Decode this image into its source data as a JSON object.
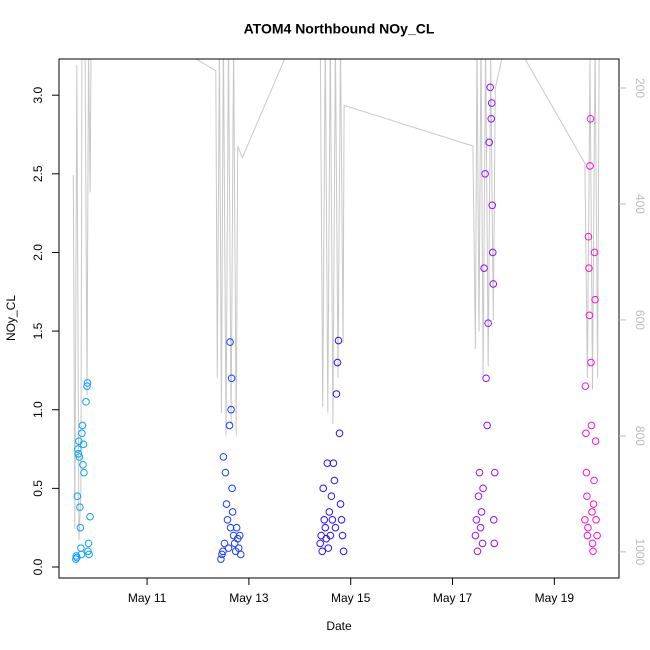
{
  "chart_data": {
    "type": "scatter",
    "title": "ATOM4 Northbound NOy_CL",
    "x_label": "Date",
    "y_label": "NOy_CL",
    "xlim": [
      9.27,
      20.27
    ],
    "xticks": [
      {
        "value": 11,
        "label": "May 11"
      },
      {
        "value": 13,
        "label": "May 13"
      },
      {
        "value": 15,
        "label": "May 15"
      },
      {
        "value": 17,
        "label": "May 17"
      },
      {
        "value": 19,
        "label": "May 19"
      }
    ],
    "ylim": [
      -0.07,
      3.23
    ],
    "yticks": [
      {
        "value": 0,
        "label": "0.0"
      },
      0.5,
      {
        "value": 1,
        "label": "1.0"
      },
      1.5,
      {
        "value": 2,
        "label": "2.0"
      },
      2.5,
      {
        "value": 3,
        "label": "3.0"
      }
    ],
    "y2lim": [
      1045,
      150
    ],
    "y2ticks": [
      200,
      400,
      600,
      800,
      1000
    ],
    "y2_color": "#bbbbbb",
    "series": [
      {
        "color": "#0aa0ff",
        "x": [
          9.6,
          9.61,
          9.62,
          9.63,
          9.64,
          9.65,
          9.66,
          9.67,
          9.68,
          9.69,
          9.7,
          9.71,
          9.72,
          9.73,
          9.74,
          9.75,
          9.76,
          9.8,
          9.82,
          9.83,
          9.84,
          9.85,
          9.86,
          9.88
        ],
        "values": [
          0.05,
          0.07,
          0.06,
          0.45,
          0.75,
          0.72,
          0.8,
          0.7,
          0.38,
          0.25,
          0.12,
          0.08,
          0.85,
          0.9,
          0.65,
          0.78,
          0.6,
          1.05,
          1.15,
          1.17,
          0.1,
          0.15,
          0.08,
          0.32
        ]
      },
      {
        "color": "#1a3cff",
        "x": [
          12.45,
          12.47,
          12.49,
          12.5,
          12.52,
          12.54,
          12.56,
          12.58,
          12.6,
          12.62,
          12.63,
          12.64,
          12.65,
          12.66,
          12.67,
          12.68,
          12.7,
          12.72,
          12.74,
          12.76,
          12.78,
          12.8,
          12.82,
          12.84
        ],
        "values": [
          0.05,
          0.08,
          0.1,
          0.7,
          0.15,
          0.6,
          0.4,
          0.3,
          0.12,
          0.9,
          1.43,
          0.25,
          1.0,
          1.2,
          0.5,
          0.35,
          0.2,
          0.15,
          0.1,
          0.25,
          0.18,
          0.12,
          0.2,
          0.08
        ]
      },
      {
        "color": "#2a10ff",
        "x": [
          14.4,
          14.42,
          14.44,
          14.46,
          14.48,
          14.5,
          14.52,
          14.54,
          14.56,
          14.58,
          14.6,
          14.62,
          14.64,
          14.66,
          14.68,
          14.7,
          14.72,
          14.74,
          14.76,
          14.78,
          14.8,
          14.82,
          14.84,
          14.86
        ],
        "values": [
          0.15,
          0.2,
          0.1,
          0.5,
          0.3,
          0.25,
          0.18,
          0.66,
          0.12,
          0.35,
          0.2,
          0.45,
          0.3,
          0.66,
          0.55,
          0.25,
          1.1,
          1.3,
          1.44,
          0.85,
          0.4,
          0.3,
          0.2,
          0.1
        ]
      },
      {
        "color": "#9010ff",
        "x": [
          17.45,
          17.47,
          17.49,
          17.51,
          17.53,
          17.55,
          17.57,
          17.59,
          17.6,
          17.62,
          17.64,
          17.66,
          17.68,
          17.7,
          17.72,
          17.74,
          17.76,
          17.77,
          17.78,
          17.79,
          17.8,
          17.81,
          17.82,
          17.83
        ],
        "values": [
          0.2,
          0.3,
          0.1,
          0.45,
          0.6,
          0.25,
          0.35,
          0.15,
          0.5,
          1.9,
          2.5,
          1.2,
          0.9,
          1.55,
          2.7,
          3.05,
          2.85,
          2.95,
          2.3,
          2.0,
          1.8,
          0.3,
          0.15,
          0.6
        ]
      },
      {
        "color": "#ff10d0",
        "x": [
          19.6,
          19.61,
          19.62,
          19.63,
          19.64,
          19.65,
          19.66,
          19.67,
          19.68,
          19.69,
          19.7,
          19.71,
          19.72,
          19.73,
          19.74,
          19.75,
          19.76,
          19.77,
          19.78,
          19.79,
          19.8,
          19.81,
          19.82,
          19.84
        ],
        "values": [
          0.3,
          1.15,
          0.85,
          0.6,
          0.45,
          0.2,
          0.25,
          2.1,
          1.9,
          1.6,
          2.55,
          2.85,
          1.3,
          0.9,
          0.35,
          0.15,
          0.1,
          0.4,
          0.55,
          2.0,
          1.7,
          0.8,
          0.3,
          0.2
        ]
      },
      {
        "type": "line",
        "axis": "y2",
        "color": "#c8c8c8",
        "x": [
          9.55,
          9.58,
          9.62,
          9.66,
          9.7,
          9.72,
          9.78,
          9.82,
          9.85,
          9.88,
          9.9,
          11.0,
          12.35,
          12.38,
          12.42,
          12.46,
          12.5,
          12.55,
          12.6,
          12.65,
          12.7,
          12.75,
          12.78,
          12.87,
          13.8,
          14.4,
          14.45,
          14.5,
          14.55,
          14.6,
          14.65,
          14.7,
          14.75,
          14.8,
          14.85,
          14.87,
          17.4,
          17.45,
          17.48,
          17.52,
          17.56,
          17.6,
          17.65,
          17.7,
          17.75,
          17.8,
          17.84,
          18.1,
          19.6,
          19.65,
          19.7,
          19.75,
          19.8,
          19.85,
          19.88
        ],
        "values": [
          350,
          960,
          160,
          980,
          900,
          140,
          120,
          730,
          130,
          380,
          120,
          100,
          170,
          700,
          120,
          760,
          100,
          800,
          110,
          780,
          120,
          800,
          300,
          320,
          130,
          100,
          750,
          110,
          760,
          110,
          780,
          120,
          700,
          120,
          640,
          230,
          300,
          650,
          120,
          620,
          110,
          700,
          120,
          680,
          150,
          600,
          200,
          100,
          330,
          700,
          150,
          720,
          120,
          700,
          150
        ]
      }
    ]
  }
}
